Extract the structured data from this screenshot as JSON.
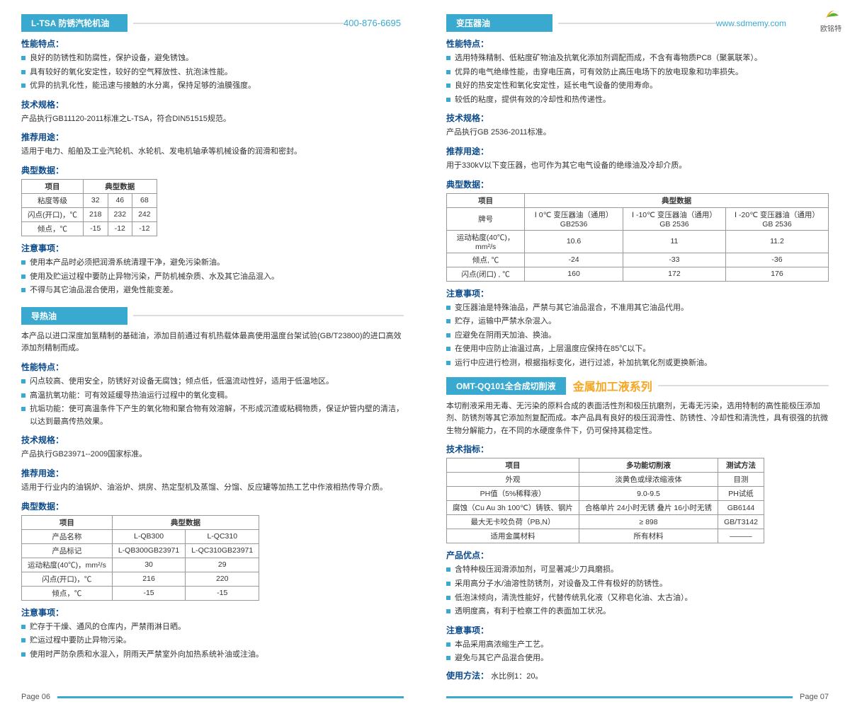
{
  "phone": "400-876-6695",
  "url": "www.sdmemy.com",
  "logoText": "欧铭特",
  "left": {
    "s1": {
      "tab": "L-TSA 防锈汽轮机油",
      "h1": "性能特点：",
      "b1": [
        "良好的防锈性和防腐性，保护设备，避免锈蚀。",
        "具有较好的氧化安定性，较好的空气释放性、抗泡沫性能。",
        "优异的抗乳化性，能迅速与接触的水分离，保持足够的油膜强度。"
      ],
      "h2": "技术规格：",
      "t2": "产品执行GB11120-2011标准之L-TSA，符合DIN51515规范。",
      "h3": "推荐用途：",
      "t3": "适用于电力、船舶及工业汽轮机、水轮机、发电机轴承等机械设备的润滑和密封。",
      "h4": "典型数据：",
      "tbl": {
        "h": [
          "项目",
          "典型数据"
        ],
        "r": [
          [
            "粘度等级",
            "32",
            "46",
            "68"
          ],
          [
            "闪点(开口)，℃",
            "218",
            "232",
            "242"
          ],
          [
            "倾点，℃",
            "-15",
            "-12",
            "-12"
          ]
        ]
      },
      "h5": "注意事项：",
      "b5": [
        "使用本产品时必须把润滑系统清理干净，避免污染新油。",
        "使用及贮运过程中要防止异物污染，严防机械杂质、水及其它油品混入。",
        "不得与其它油品混合使用，避免性能变差。"
      ]
    },
    "s2": {
      "tab": "导热油",
      "intro": "本产品以进口深度加氢精制的基础油，添加目前通过有机热载体最高使用温度台架试验(GB/T23800)的进口高效添加剂精制而成。",
      "h1": "性能特点：",
      "b1": [
        "闪点较高、使用安全，防锈好对设备无腐蚀；倾点低，低温流动性好，适用于低温地区。",
        "高温抗氧功能：可有效延缓导热油运行过程中的氧化变稠。",
        "抗垢功能：使可高温条件下产生的氧化物和聚合物有效溶解，不形成沉渣或粘稠物质，保证炉管内壁的清洁，以达到最高传热效果。"
      ],
      "h2": "技术规格：",
      "t2": "产品执行GB23971--2009国家标准。",
      "h3": "推荐用途：",
      "t3": "适用于行业内的油锅炉、油浴炉、烘房、热定型机及蒸馏、分馏、反应罐等加热工艺中作液相热传导介质。",
      "h4": "典型数据：",
      "tbl": {
        "h": [
          "项目",
          "典型数据"
        ],
        "r": [
          [
            "产品名称",
            "L-QB300",
            "L-QC310"
          ],
          [
            "产品标记",
            "L-QB300GB23971",
            "L-QC310GB23971"
          ],
          [
            "运动粘度(40℃)，mm²/s",
            "30",
            "29"
          ],
          [
            "闪点(开口)，℃",
            "216",
            "220"
          ],
          [
            "倾点，℃",
            "-15",
            "-15"
          ]
        ]
      },
      "h5": "注意事项：",
      "b5": [
        "贮存于干燥、通风的仓库内，严禁雨淋日晒。",
        "贮运过程中要防止异物污染。",
        "使用时严防杂质和水混入，阴雨天严禁室外向加热系统补油或注油。"
      ]
    }
  },
  "right": {
    "s1": {
      "tab": "变压器油",
      "h1": "性能特点：",
      "b1": [
        "选用特殊精制、低粘度矿物油及抗氧化添加剂调配而成，不含有毒物质PC8（聚氯联苯）。",
        "优异的电气绝缘性能，击穿电压高，可有效防止高压电场下的放电现象和功率损失。",
        "良好的热安定性和氧化安定性，延长电气设备的使用寿命。",
        "较低的粘度，提供有效的冷却性和热传递性。"
      ],
      "h2": "技术规格：",
      "t2": "产品执行GB 2536-2011标准。",
      "h3": "推荐用途：",
      "t3": "用于330kV以下变压器，也可作为其它电气设备的绝缘油及冷却介质。",
      "h4": "典型数据：",
      "tbl": {
        "h": [
          "项目",
          "典型数据"
        ],
        "r": [
          [
            "牌号",
            "Ⅰ 0℃ 变压器油（通用）GB2536",
            "Ⅰ -10℃ 变压器油（通用）GB 2536",
            "Ⅰ -20℃ 变压器油（通用）GB 2536"
          ],
          [
            "运动粘度(40℃)，mm²/s",
            "10.6",
            "11",
            "11.2"
          ],
          [
            "倾点, ℃",
            "-24",
            "-33",
            "-36"
          ],
          [
            "闪点(闭口) , ℃",
            "160",
            "172",
            "176"
          ]
        ]
      },
      "h5": "注意事项：",
      "b5": [
        "变压器油是特殊油品，严禁与其它油品混合，不准用其它油品代用。",
        "贮存，运输中严禁水杂混入。",
        "应避免在阴雨天加油、换油。",
        "在使用中应防止油温过高，上层温度应保持在85℃以下。",
        "运行中应进行检测，根据指标变化，进行过滤，补加抗氧化剂或更换新油。"
      ]
    },
    "s2": {
      "tab": "OMT-QQ101全合成切削液",
      "series": "金属加工液系列",
      "intro": "本切削液采用无毒、无污染的原料合成的表面活性剂和极压抗磨剂，无毒无污染，选用特制的高性能极压添加剂、防锈剂等其它添加剂复配而成。本产品具有良好的极压润滑性、防锈性、冷却性和清洗性，具有很强的抗微生物分解能力，在不同的水硬度条件下，仍可保持其稳定性。",
      "h1": "技术指标：",
      "tbl": {
        "h": [
          "项目",
          "多功能切削液",
          "测试方法"
        ],
        "r": [
          [
            "外观",
            "淡黄色或绿浓缩液体",
            "目测"
          ],
          [
            "PH值（5%稀释液）",
            "9.0-9.5",
            "PH试纸"
          ],
          [
            "腐蚀（Cu Au 3h 100℃）铸铁、钢片",
            "合格单片 24小时无锈 叠片 16小时无锈",
            "GB6144"
          ],
          [
            "最大无卡咬负荷（PB,N）",
            "≥ 898",
            "GB/T3142"
          ],
          [
            "适用金属材料",
            "所有材料",
            "———"
          ]
        ]
      },
      "h2": "产品优点：",
      "b2": [
        "含特种极压润滑添加剂，可显著减少刀具磨损。",
        "采用高分子水/油溶性防锈剂，对设备及工件有极好的防锈性。",
        "低泡沫倾向，清洗性能好，代替传统乳化液（又称皂化油、太古油）。",
        "透明度高，有利于检察工件的表面加工状况。"
      ],
      "h3": "注意事项：",
      "b3": [
        "本品采用高浓缩生产工艺。",
        "避免与其它产品混合使用。"
      ],
      "h4": "使用方法：",
      "t4": "水比例1：20。"
    }
  },
  "pgL": "Page 06",
  "pgR": "Page 07"
}
